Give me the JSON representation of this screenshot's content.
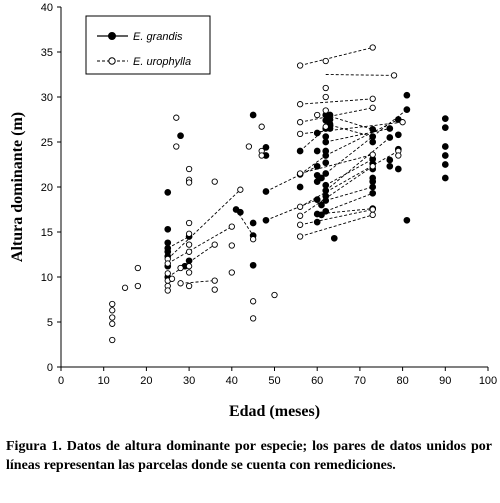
{
  "chart_data": {
    "type": "scatter",
    "xlabel": "Edad (meses)",
    "ylabel": "Altura dominante (m)",
    "xlim": [
      0,
      100
    ],
    "ylim": [
      0,
      40
    ],
    "x_ticks": [
      0,
      10,
      20,
      30,
      40,
      50,
      60,
      70,
      80,
      90,
      100
    ],
    "y_ticks": [
      0,
      5,
      10,
      15,
      20,
      25,
      30,
      35,
      40
    ],
    "grid": false,
    "legend_placement": "top-left",
    "series": [
      {
        "name": "E. grandis",
        "marker": "filled-circle",
        "color": "#000000",
        "points": [
          [
            25,
            19.4
          ],
          [
            25,
            15.3
          ],
          [
            25,
            13.8
          ],
          [
            25,
            13.2
          ],
          [
            25,
            12.8
          ],
          [
            25,
            12.3
          ],
          [
            25,
            11.2
          ],
          [
            25,
            10.0
          ],
          [
            28,
            25.7
          ],
          [
            29,
            11.2
          ],
          [
            30,
            14.5
          ],
          [
            30,
            11.8
          ],
          [
            41,
            17.5
          ],
          [
            42,
            17.2
          ],
          [
            45,
            28.0
          ],
          [
            45,
            16.0
          ],
          [
            45,
            14.6
          ],
          [
            45,
            11.3
          ],
          [
            48,
            24.4
          ],
          [
            48,
            23.5
          ],
          [
            48,
            19.5
          ],
          [
            48,
            16.3
          ],
          [
            56,
            24.0
          ],
          [
            56,
            21.4
          ],
          [
            56,
            20.0
          ],
          [
            60,
            26.0
          ],
          [
            60,
            24.0
          ],
          [
            60,
            22.3
          ],
          [
            60,
            21.3
          ],
          [
            60,
            20.6
          ],
          [
            60,
            18.6
          ],
          [
            60,
            17.0
          ],
          [
            60,
            16.1
          ],
          [
            61,
            21.0
          ],
          [
            61,
            18.0
          ],
          [
            61,
            16.9
          ],
          [
            62,
            28.0
          ],
          [
            62,
            27.4
          ],
          [
            62,
            26.5
          ],
          [
            62,
            25.6
          ],
          [
            62,
            25.0
          ],
          [
            62,
            24.0
          ],
          [
            62,
            23.5
          ],
          [
            62,
            22.7
          ],
          [
            62,
            21.5
          ],
          [
            62,
            20.2
          ],
          [
            62,
            19.6
          ],
          [
            62,
            19.0
          ],
          [
            62,
            18.5
          ],
          [
            62,
            17.3
          ],
          [
            63,
            28.0
          ],
          [
            63,
            27.5
          ],
          [
            63,
            27.0
          ],
          [
            63,
            26.8
          ],
          [
            63,
            26.5
          ],
          [
            64,
            14.3
          ],
          [
            73,
            26.4
          ],
          [
            73,
            25.6
          ],
          [
            73,
            25.0
          ],
          [
            73,
            23.1
          ],
          [
            73,
            22.6
          ],
          [
            73,
            22.0
          ],
          [
            73,
            21.0
          ],
          [
            73,
            20.6
          ],
          [
            73,
            20.0
          ],
          [
            73,
            19.3
          ],
          [
            73,
            17.6
          ],
          [
            77,
            26.5
          ],
          [
            77,
            25.5
          ],
          [
            77,
            23.0
          ],
          [
            77,
            22.3
          ],
          [
            79,
            27.5
          ],
          [
            79,
            25.8
          ],
          [
            79,
            24.2
          ],
          [
            79,
            22.0
          ],
          [
            81,
            30.2
          ],
          [
            81,
            28.6
          ],
          [
            81,
            16.3
          ],
          [
            90,
            27.6
          ],
          [
            90,
            26.6
          ],
          [
            90,
            24.5
          ],
          [
            90,
            23.5
          ],
          [
            90,
            22.5
          ],
          [
            90,
            21.0
          ]
        ],
        "lines": [
          [
            [
              25,
              13.2
            ],
            [
              30,
              14.5
            ]
          ],
          [
            [
              25,
              10.0
            ],
            [
              29,
              11.2
            ]
          ],
          [
            [
              41,
              17.5
            ],
            [
              45,
              14.6
            ]
          ],
          [
            [
              56,
              24.0
            ],
            [
              62,
              26.5
            ]
          ],
          [
            [
              56,
              21.4
            ],
            [
              62,
              23.5
            ]
          ],
          [
            [
              48,
              19.5
            ],
            [
              60,
              22.3
            ]
          ],
          [
            [
              48,
              16.3
            ],
            [
              60,
              18.6
            ]
          ],
          [
            [
              62,
              28.0
            ],
            [
              73,
              26.4
            ]
          ],
          [
            [
              62,
              27.0
            ],
            [
              73,
              25.6
            ]
          ],
          [
            [
              62,
              25.0
            ],
            [
              77,
              26.5
            ]
          ],
          [
            [
              62,
              23.5
            ],
            [
              79,
              27.5
            ]
          ],
          [
            [
              62,
              21.5
            ],
            [
              81,
              28.6
            ]
          ],
          [
            [
              62,
              20.2
            ],
            [
              73,
              23.1
            ]
          ],
          [
            [
              62,
              19.6
            ],
            [
              77,
              25.5
            ]
          ],
          [
            [
              62,
              18.5
            ],
            [
              73,
              20.0
            ]
          ],
          [
            [
              62,
              17.3
            ],
            [
              73,
              19.3
            ]
          ],
          [
            [
              60,
              17.0
            ],
            [
              73,
              17.6
            ]
          ]
        ]
      },
      {
        "name": "E. urophylla",
        "marker": "open-circle",
        "color": "#000000",
        "points": [
          [
            12,
            7.0
          ],
          [
            12,
            6.3
          ],
          [
            12,
            5.5
          ],
          [
            12,
            4.8
          ],
          [
            12,
            3.0
          ],
          [
            15,
            8.8
          ],
          [
            18,
            11.0
          ],
          [
            18,
            9.0
          ],
          [
            25,
            12.0
          ],
          [
            25,
            11.5
          ],
          [
            25,
            10.4
          ],
          [
            25,
            9.6
          ],
          [
            25,
            9.0
          ],
          [
            25,
            8.5
          ],
          [
            26,
            9.8
          ],
          [
            27,
            27.7
          ],
          [
            27,
            24.5
          ],
          [
            28,
            11.0
          ],
          [
            28,
            9.3
          ],
          [
            30,
            22.0
          ],
          [
            30,
            20.8
          ],
          [
            30,
            20.5
          ],
          [
            30,
            16.0
          ],
          [
            30,
            14.8
          ],
          [
            30,
            13.6
          ],
          [
            30,
            12.8
          ],
          [
            30,
            11.2
          ],
          [
            30,
            10.5
          ],
          [
            30,
            9.0
          ],
          [
            36,
            20.6
          ],
          [
            36,
            13.6
          ],
          [
            36,
            9.6
          ],
          [
            36,
            8.6
          ],
          [
            40,
            15.6
          ],
          [
            40,
            13.5
          ],
          [
            40,
            10.5
          ],
          [
            42,
            19.7
          ],
          [
            44,
            24.5
          ],
          [
            45,
            14.2
          ],
          [
            45,
            7.3
          ],
          [
            45,
            5.4
          ],
          [
            47,
            26.7
          ],
          [
            47,
            24.0
          ],
          [
            47,
            23.5
          ],
          [
            50,
            8.0
          ],
          [
            56,
            33.5
          ],
          [
            56,
            29.2
          ],
          [
            56,
            27.2
          ],
          [
            56,
            25.9
          ],
          [
            56,
            21.5
          ],
          [
            56,
            17.8
          ],
          [
            56,
            16.8
          ],
          [
            56,
            15.8
          ],
          [
            56,
            14.5
          ],
          [
            60,
            28.0
          ],
          [
            62,
            34.0
          ],
          [
            62,
            31.0
          ],
          [
            62,
            30.0
          ],
          [
            62,
            28.5
          ],
          [
            62,
            26.7
          ],
          [
            73,
            35.5
          ],
          [
            73,
            29.8
          ],
          [
            73,
            28.8
          ],
          [
            73,
            23.6
          ],
          [
            73,
            22.3
          ],
          [
            73,
            17.5
          ],
          [
            73,
            16.9
          ],
          [
            78,
            32.4
          ],
          [
            79,
            24.0
          ],
          [
            79,
            23.5
          ],
          [
            80,
            27.2
          ]
        ],
        "lines": [
          [
            [
              25,
              12.0
            ],
            [
              42,
              19.7
            ]
          ],
          [
            [
              25,
              11.5
            ],
            [
              40,
              15.6
            ]
          ],
          [
            [
              28,
              11.0
            ],
            [
              36,
              13.6
            ]
          ],
          [
            [
              28,
              9.3
            ],
            [
              36,
              9.6
            ]
          ],
          [
            [
              56,
              33.5
            ],
            [
              73,
              35.5
            ]
          ],
          [
            [
              62,
              32.5
            ],
            [
              78,
              32.4
            ]
          ],
          [
            [
              56,
              29.2
            ],
            [
              73,
              29.8
            ]
          ],
          [
            [
              56,
              27.2
            ],
            [
              73,
              28.8
            ]
          ],
          [
            [
              56,
              25.9
            ],
            [
              80,
              27.2
            ]
          ],
          [
            [
              56,
              21.5
            ],
            [
              73,
              23.6
            ]
          ],
          [
            [
              56,
              17.8
            ],
            [
              79,
              24.0
            ]
          ],
          [
            [
              56,
              16.8
            ],
            [
              73,
              22.3
            ]
          ],
          [
            [
              56,
              15.8
            ],
            [
              73,
              17.5
            ]
          ],
          [
            [
              56,
              14.5
            ],
            [
              73,
              16.9
            ]
          ]
        ]
      }
    ]
  },
  "caption": "Figura 1. Datos de altura dominante por especie; los pares de datos unidos por líneas representan las parcelas donde se cuenta con remediciones."
}
